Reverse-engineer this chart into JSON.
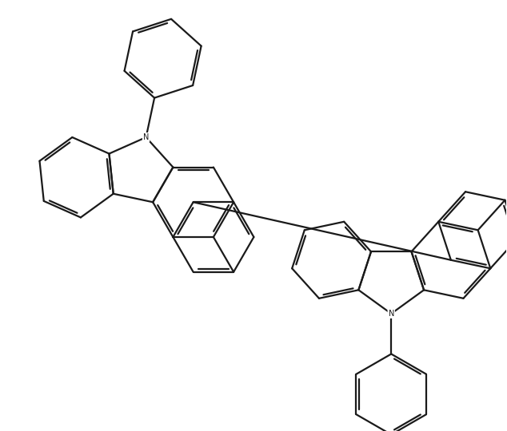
{
  "bg_color": "#ffffff",
  "line_color": "#1a1a1a",
  "line_width": 1.6,
  "fig_width": 6.34,
  "fig_height": 5.4,
  "dpi": 100,
  "xlim": [
    0,
    9.0
  ],
  "ylim": [
    0,
    7.7
  ]
}
